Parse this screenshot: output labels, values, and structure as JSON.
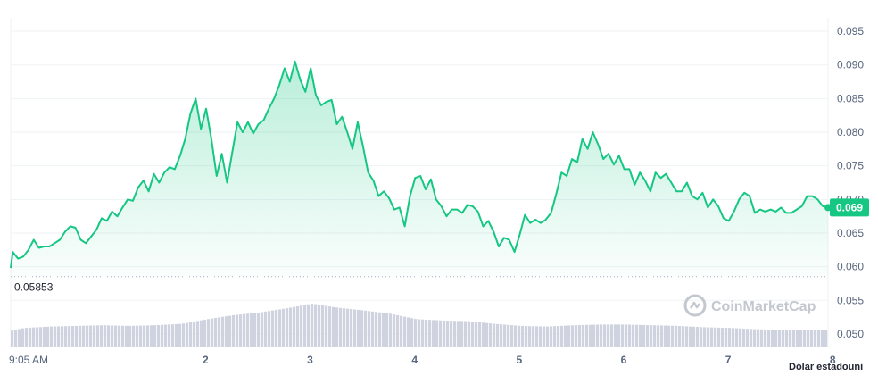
{
  "chart_data": {
    "type": "area",
    "y_ticks": [
      "0.095",
      "0.090",
      "0.085",
      "0.080",
      "0.075",
      "0.070",
      "0.065",
      "0.060",
      "0.055",
      "0.050"
    ],
    "ylim": [
      0.048,
      0.097
    ],
    "x_ticks": [
      {
        "label": "9:05 AM",
        "x": 1.0
      },
      {
        "label": "2",
        "x": 2.0
      },
      {
        "label": "3",
        "x": 3.0
      },
      {
        "label": "4",
        "x": 4.0
      },
      {
        "label": "5",
        "x": 5.0
      },
      {
        "label": "6",
        "x": 6.0
      },
      {
        "label": "7",
        "x": 7.0
      },
      {
        "label": "8",
        "x": 8.0
      }
    ],
    "xlim": [
      0.13,
      7.95
    ],
    "currency_label": "Dólar estadouni",
    "baseline": {
      "label": "0.05853",
      "value": 0.05853
    },
    "current": {
      "label": "0.069",
      "value": 0.0688
    },
    "watermark": "CoinMarketCap",
    "colors": {
      "line": "#16c784",
      "area_top": "#16c784",
      "volume": "#cfd3e0",
      "current_bg": "#16c784",
      "grid": "#eff2f5",
      "axis_text": "#58667e"
    },
    "price_series": {
      "x": [
        0.13,
        0.15,
        0.2,
        0.25,
        0.3,
        0.35,
        0.4,
        0.45,
        0.5,
        0.55,
        0.6,
        0.65,
        0.7,
        0.75,
        0.8,
        0.85,
        0.9,
        0.95,
        1.0,
        1.05,
        1.1,
        1.15,
        1.2,
        1.25,
        1.3,
        1.35,
        1.4,
        1.45,
        1.5,
        1.55,
        1.6,
        1.65,
        1.7,
        1.75,
        1.8,
        1.85,
        1.9,
        1.95,
        2.0,
        2.05,
        2.1,
        2.15,
        2.2,
        2.25,
        2.3,
        2.35,
        2.4,
        2.45,
        2.5,
        2.55,
        2.6,
        2.65,
        2.7,
        2.75,
        2.8,
        2.85,
        2.9,
        2.95,
        3.0,
        3.05,
        3.1,
        3.15,
        3.2,
        3.25,
        3.3,
        3.35,
        3.4,
        3.45,
        3.5,
        3.55,
        3.6,
        3.65,
        3.7,
        3.75,
        3.8,
        3.85,
        3.9,
        3.95,
        4.0,
        4.05,
        4.1,
        4.15,
        4.2,
        4.25,
        4.3,
        4.35,
        4.4,
        4.45,
        4.5,
        4.55,
        4.6,
        4.65,
        4.7,
        4.75,
        4.8,
        4.85,
        4.9,
        4.95,
        5.0,
        5.05,
        5.1,
        5.15,
        5.2,
        5.25,
        5.3,
        5.35,
        5.4,
        5.45,
        5.5,
        5.55,
        5.6,
        5.65,
        5.7,
        5.75,
        5.8,
        5.85,
        5.9,
        5.95,
        6.0,
        6.05,
        6.1,
        6.15,
        6.2,
        6.25,
        6.3,
        6.35,
        6.4,
        6.45,
        6.5,
        6.55,
        6.6,
        6.65,
        6.7,
        6.75,
        6.8,
        6.85,
        6.9,
        6.95,
        7.0,
        7.05,
        7.1,
        7.15,
        7.2,
        7.25,
        7.3,
        7.35,
        7.4,
        7.45,
        7.5,
        7.55,
        7.6,
        7.65,
        7.7,
        7.75,
        7.8,
        7.85,
        7.9,
        7.95
      ],
      "y": [
        0.0598,
        0.0622,
        0.0612,
        0.0615,
        0.0625,
        0.064,
        0.0628,
        0.063,
        0.063,
        0.0635,
        0.064,
        0.0652,
        0.066,
        0.0658,
        0.064,
        0.0635,
        0.0645,
        0.0655,
        0.0672,
        0.0668,
        0.0682,
        0.0675,
        0.0688,
        0.07,
        0.0698,
        0.0718,
        0.0728,
        0.0712,
        0.0738,
        0.0725,
        0.074,
        0.0748,
        0.0745,
        0.0765,
        0.079,
        0.0828,
        0.085,
        0.0805,
        0.0835,
        0.079,
        0.0735,
        0.0768,
        0.0725,
        0.077,
        0.0815,
        0.08,
        0.0815,
        0.0798,
        0.0812,
        0.0818,
        0.0835,
        0.085,
        0.087,
        0.0895,
        0.0875,
        0.0905,
        0.0878,
        0.086,
        0.0895,
        0.0855,
        0.084,
        0.0845,
        0.0848,
        0.0812,
        0.0823,
        0.08,
        0.0775,
        0.0815,
        0.078,
        0.074,
        0.0728,
        0.0705,
        0.0712,
        0.0702,
        0.0685,
        0.0688,
        0.066,
        0.0705,
        0.0732,
        0.0735,
        0.0715,
        0.073,
        0.07,
        0.069,
        0.0675,
        0.0685,
        0.0685,
        0.068,
        0.0692,
        0.069,
        0.0682,
        0.066,
        0.0668,
        0.0652,
        0.063,
        0.0643,
        0.064,
        0.0622,
        0.0648,
        0.0677,
        0.0665,
        0.067,
        0.0665,
        0.067,
        0.068,
        0.0708,
        0.074,
        0.0735,
        0.076,
        0.0755,
        0.079,
        0.0775,
        0.08,
        0.0782,
        0.076,
        0.0768,
        0.0752,
        0.0765,
        0.0745,
        0.0745,
        0.0722,
        0.074,
        0.0728,
        0.0712,
        0.074,
        0.0732,
        0.0738,
        0.0725,
        0.0712,
        0.0712,
        0.0725,
        0.0705,
        0.07,
        0.071,
        0.0688,
        0.07,
        0.069,
        0.0672,
        0.0668,
        0.0682,
        0.07,
        0.071,
        0.0705,
        0.068,
        0.0685,
        0.0682,
        0.0685,
        0.0682,
        0.0688,
        0.068,
        0.068,
        0.0685,
        0.069,
        0.0705,
        0.0705,
        0.07,
        0.069,
        0.0688
      ]
    },
    "volume_series": {
      "x": [
        0.13,
        0.25,
        0.5,
        0.75,
        1.0,
        1.25,
        1.5,
        1.75,
        2.0,
        2.25,
        2.5,
        2.75,
        3.0,
        3.25,
        3.5,
        3.75,
        4.0,
        4.25,
        4.5,
        4.75,
        5.0,
        5.25,
        5.5,
        5.75,
        6.0,
        6.25,
        6.5,
        6.75,
        7.0,
        7.25,
        7.5,
        7.75,
        7.95
      ],
      "y": [
        0.0505,
        0.0509,
        0.0511,
        0.0512,
        0.0513,
        0.0512,
        0.0513,
        0.0515,
        0.0522,
        0.0528,
        0.0532,
        0.0538,
        0.0545,
        0.0539,
        0.0535,
        0.053,
        0.0522,
        0.052,
        0.0519,
        0.0515,
        0.0512,
        0.0511,
        0.0513,
        0.0514,
        0.0514,
        0.0513,
        0.0512,
        0.051,
        0.0509,
        0.0507,
        0.0506,
        0.0506,
        0.0505
      ]
    }
  }
}
